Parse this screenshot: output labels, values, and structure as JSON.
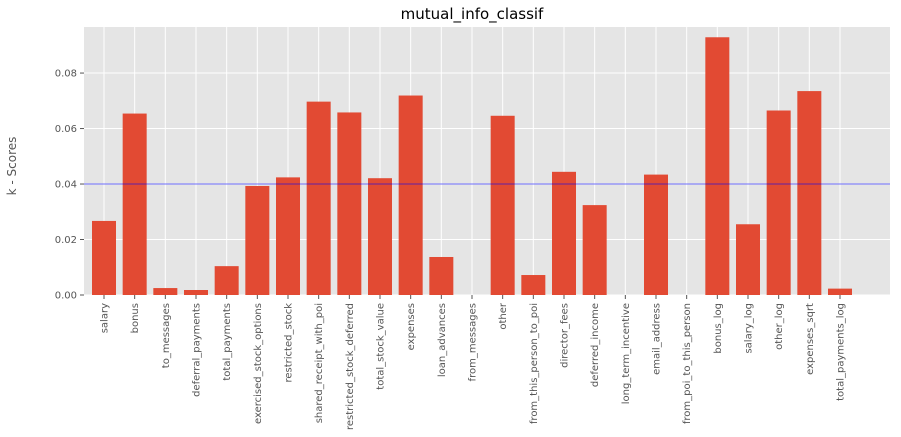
{
  "chart_data": {
    "type": "bar",
    "title": "mutual_info_classif",
    "xlabel": "",
    "ylabel": "k - Scores",
    "ylim": [
      0,
      0.0966
    ],
    "yticks": [
      0.0,
      0.02,
      0.04,
      0.06,
      0.08
    ],
    "ytick_labels": [
      "0.00",
      "0.02",
      "0.04",
      "0.06",
      "0.08"
    ],
    "grid": true,
    "categories": [
      "salary",
      "bonus",
      "to_messages",
      "deferral_payments",
      "total_payments",
      "exercised_stock_options",
      "restricted_stock",
      "shared_receipt_with_poi",
      "restricted_stock_deferred",
      "total_stock_value",
      "expenses",
      "loan_advances",
      "from_messages",
      "other",
      "from_this_person_to_poi",
      "director_fees",
      "deferred_income",
      "long_term_incentive",
      "email_address",
      "from_poi_to_this_person",
      "bonus_log",
      "salary_log",
      "other_log",
      "expenses_sqrt",
      "total_payments_log"
    ],
    "values": [
      0.0267,
      0.0654,
      0.0025,
      0.0018,
      0.0104,
      0.0393,
      0.0424,
      0.0697,
      0.0658,
      0.0421,
      0.0719,
      0.0137,
      0.0,
      0.0646,
      0.0072,
      0.0444,
      0.0324,
      0.0,
      0.0434,
      0.0,
      0.0929,
      0.0255,
      0.0665,
      0.0735,
      0.0023
    ],
    "threshold_line": 0.04,
    "colors": {
      "bar": "#E24A33",
      "plot_background": "#E5E5E5",
      "grid": "#FFFFFF",
      "threshold_line": "#0000FF"
    }
  }
}
